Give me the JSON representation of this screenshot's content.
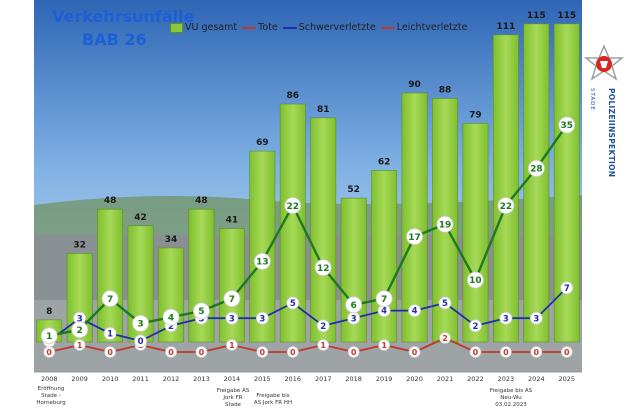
{
  "chart_data": {
    "type": "bar",
    "title_line1": "Verkehrsunfälle",
    "title_line2": "BAB 26",
    "categories": [
      "2008",
      "2009",
      "2010",
      "2011",
      "2012",
      "2013",
      "2014",
      "2015",
      "2016",
      "2017",
      "2018",
      "2019",
      "2020",
      "2021",
      "2022",
      "2023",
      "2024",
      "2025"
    ],
    "series": [
      {
        "name": "VU gesamt",
        "type": "bar",
        "color": "#8cc63f",
        "values": [
          8,
          32,
          48,
          42,
          34,
          48,
          41,
          69,
          86,
          81,
          52,
          62,
          90,
          88,
          79,
          111,
          115,
          115
        ]
      },
      {
        "name": "Tote",
        "type": "line",
        "color": "#2a2a2a",
        "values": [
          0,
          0,
          0,
          0,
          0,
          0,
          0,
          0,
          0,
          0,
          0,
          0,
          0,
          0,
          0,
          0,
          0,
          0
        ]
      },
      {
        "name": "Schwerverletzte",
        "type": "line",
        "color": "#1f2fa8",
        "values": [
          0,
          3,
          1,
          0,
          2,
          3,
          3,
          3,
          5,
          2,
          3,
          4,
          4,
          5,
          2,
          3,
          3,
          7
        ]
      },
      {
        "name": "Leichtverletzte",
        "type": "line",
        "color": "#1e7a1e",
        "values": [
          1,
          2,
          7,
          3,
          4,
          5,
          7,
          13,
          22,
          12,
          6,
          7,
          17,
          19,
          10,
          22,
          28,
          35
        ]
      }
    ],
    "extra_red_line": {
      "color": "#c0392b",
      "values": [
        0,
        1,
        0,
        1,
        0,
        0,
        1,
        0,
        0,
        1,
        0,
        1,
        0,
        2,
        0,
        0,
        0,
        0
      ]
    },
    "ylim": [
      0,
      120
    ],
    "grid": false,
    "legend": "top"
  },
  "notes": {
    "n1": "Eröffnung Stade - Horneburg",
    "n2": "Freigabe AS Jork FR Stade",
    "n3": "Freigabe bis AS Jork FR HH",
    "n4": "Freigabe bis AS Neu-Wu 03.02.2023"
  },
  "badge": {
    "main": "POLIZEIINSPEKTION",
    "sub": "STADE"
  }
}
